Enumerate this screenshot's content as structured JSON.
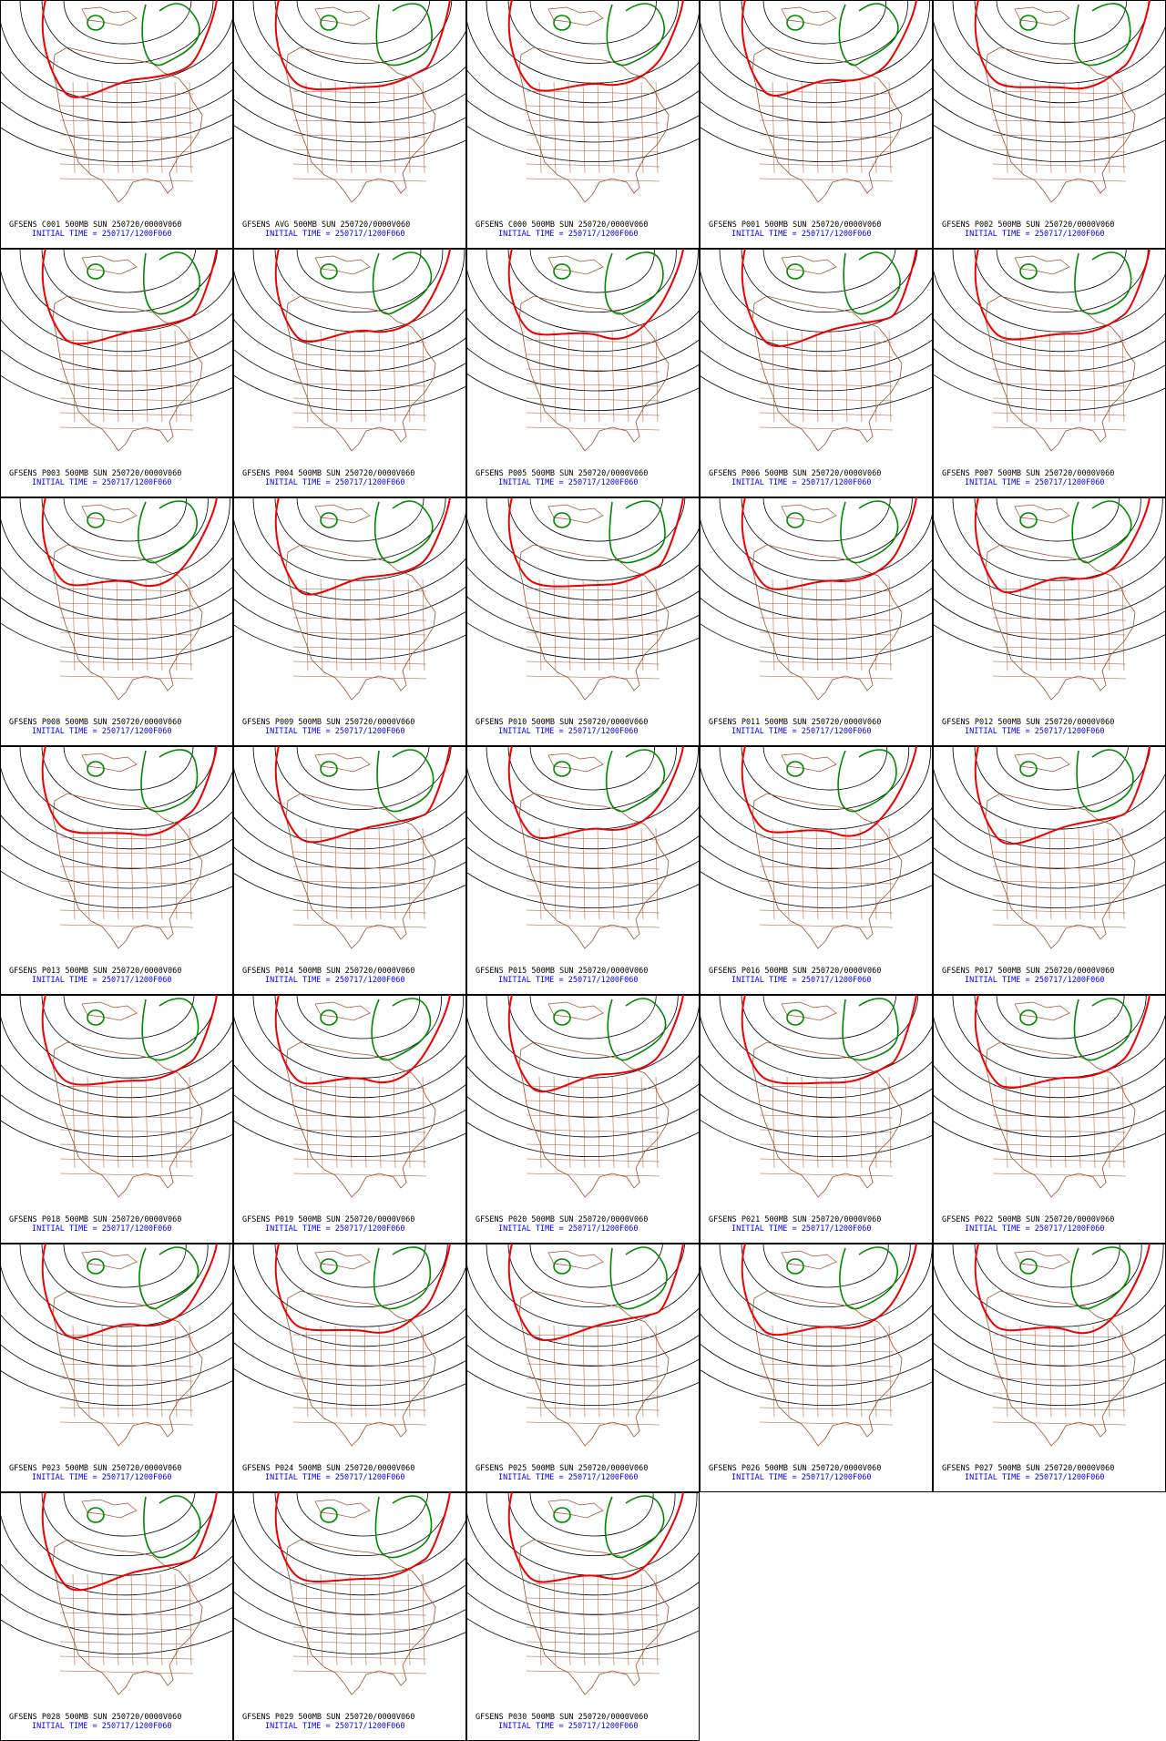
{
  "panels": [
    {
      "title": "GFSENS C001 500MB SUN 250720/0000V060",
      "init_time": "INITIAL TIME = 250717/1200F060"
    },
    {
      "title": "GFSENS AVG 500MB SUN 250720/0000V060",
      "init_time": "INITIAL TIME = 250717/1200F060"
    },
    {
      "title": "GFSENS C000 500MB SUN 250720/0000V060",
      "init_time": "INITIAL TIME = 250717/1200F060"
    },
    {
      "title": "GFSENS P001 500MB SUN 250720/0000V060",
      "init_time": "INITIAL TIME = 250717/1200F060"
    },
    {
      "title": "GFSENS P002 500MB SUN 250720/0000V060",
      "init_time": "INITIAL TIME = 250717/1200F060"
    },
    {
      "title": "GFSENS P003 500MB SUN 250720/0000V060",
      "init_time": "INITIAL TIME = 250717/1200F060"
    },
    {
      "title": "GFSENS P004 500MB SUN 250720/0000V060",
      "init_time": "INITIAL TIME = 250717/1200F060"
    },
    {
      "title": "GFSENS P005 500MB SUN 250720/0000V060",
      "init_time": "INITIAL TIME = 250717/1200F060"
    },
    {
      "title": "GFSENS P006 500MB SUN 250720/0000V060",
      "init_time": "INITIAL TIME = 250717/1200F060"
    },
    {
      "title": "GFSENS P007 500MB SUN 250720/0000V060",
      "init_time": "INITIAL TIME = 250717/1200F060"
    },
    {
      "title": "GFSENS P008 500MB SUN 250720/0000V060",
      "init_time": "INITIAL TIME = 250717/1200F060"
    },
    {
      "title": "GFSENS P009 500MB SUN 250720/0000V060",
      "init_time": "INITIAL TIME = 250717/1200F060"
    },
    {
      "title": "GFSENS P010 500MB SUN 250720/0000V060",
      "init_time": "INITIAL TIME = 250717/1200F060"
    },
    {
      "title": "GFSENS P011 500MB SUN 250720/0000V060",
      "init_time": "INITIAL TIME = 250717/1200F060"
    },
    {
      "title": "GFSENS P012 500MB SUN 250720/0000V060",
      "init_time": "INITIAL TIME = 250717/1200F060"
    },
    {
      "title": "GFSENS P013 500MB SUN 250720/0000V060",
      "init_time": "INITIAL TIME = 250717/1200F060"
    },
    {
      "title": "GFSENS P014 500MB SUN 250720/0000V060",
      "init_time": "INITIAL TIME = 250717/1200F060"
    },
    {
      "title": "GFSENS P015 500MB SUN 250720/0000V060",
      "init_time": "INITIAL TIME = 250717/1200F060"
    },
    {
      "title": "GFSENS P016 500MB SUN 250720/0000V060",
      "init_time": "INITIAL TIME = 250717/1200F060"
    },
    {
      "title": "GFSENS P017 500MB SUN 250720/0000V060",
      "init_time": "INITIAL TIME = 250717/1200F060"
    },
    {
      "title": "GFSENS P018 500MB SUN 250720/0000V060",
      "init_time": "INITIAL TIME = 250717/1200F060"
    },
    {
      "title": "GFSENS P019 500MB SUN 250720/0000V060",
      "init_time": "INITIAL TIME = 250717/1200F060"
    },
    {
      "title": "GFSENS P020 500MB SUN 250720/0000V060",
      "init_time": "INITIAL TIME = 250717/1200F060"
    },
    {
      "title": "GFSENS P021 500MB SUN 250720/0000V060",
      "init_time": "INITIAL TIME = 250717/1200F060"
    },
    {
      "title": "GFSENS P022 500MB SUN 250720/0000V060",
      "init_time": "INITIAL TIME = 250717/1200F060"
    },
    {
      "title": "GFSENS P023 500MB SUN 250720/0000V060",
      "init_time": "INITIAL TIME = 250717/1200F060"
    },
    {
      "title": "GFSENS P024 500MB SUN 250720/0000V060",
      "init_time": "INITIAL TIME = 250717/1200F060"
    },
    {
      "title": "GFSENS P025 500MB SUN 250720/0000V060",
      "init_time": "INITIAL TIME = 250717/1200F060"
    },
    {
      "title": "GFSENS P026 500MB SUN 250720/0000V060",
      "init_time": "INITIAL TIME = 250717/1200F060"
    },
    {
      "title": "GFSENS P027 500MB SUN 250720/0000V060",
      "init_time": "INITIAL TIME = 250717/1200F060"
    },
    {
      "title": "GFSENS P028 500MB SUN 250720/0000V060",
      "init_time": "INITIAL TIME = 250717/1200F060"
    },
    {
      "title": "GFSENS P029 500MB SUN 250720/0000V060",
      "init_time": "INITIAL TIME = 250717/1200F060"
    },
    {
      "title": "GFSENS P030 500MB SUN 250720/0000V060",
      "init_time": "INITIAL TIME = 250717/1200F060"
    }
  ]
}
